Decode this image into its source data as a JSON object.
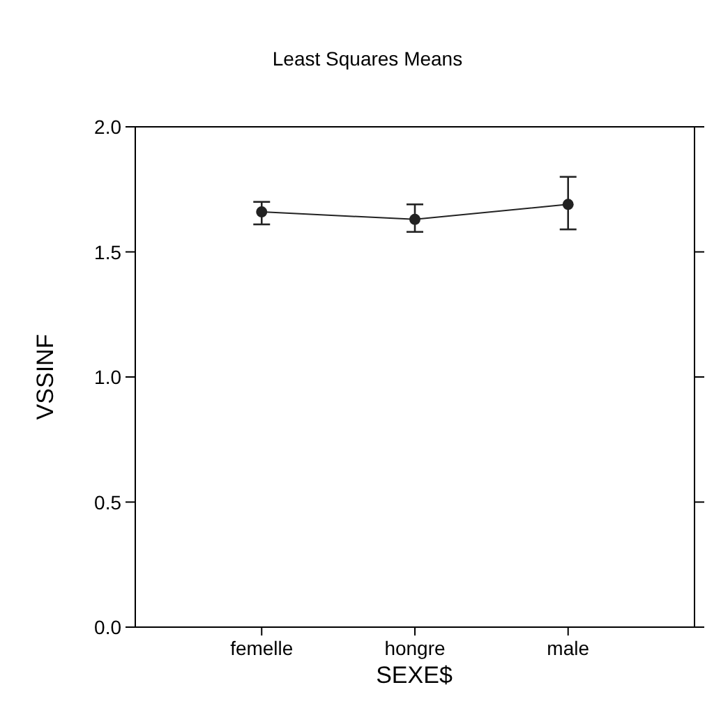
{
  "chart_data": {
    "type": "line",
    "title": "Least Squares Means",
    "xlabel": "SEXE$",
    "ylabel": "VSSINF",
    "categories": [
      "femelle",
      "hongre",
      "male"
    ],
    "series": [
      {
        "color": "#222222",
        "values": [
          1.66,
          1.63,
          1.69
        ],
        "errors": [
          [
            1.61,
            1.7
          ],
          [
            1.58,
            1.69
          ],
          [
            1.59,
            1.8
          ]
        ]
      }
    ],
    "ylim": [
      0,
      2
    ],
    "yticks": [
      {
        "value": 0,
        "label": "0.0"
      },
      {
        "value": 0.5,
        "label": "0.5"
      },
      {
        "value": 1,
        "label": "1.0"
      },
      {
        "value": 1.5,
        "label": "1.5"
      },
      {
        "value": 2,
        "label": "2.0"
      }
    ],
    "grid": false,
    "marker": "circle",
    "line_style": "solid"
  }
}
